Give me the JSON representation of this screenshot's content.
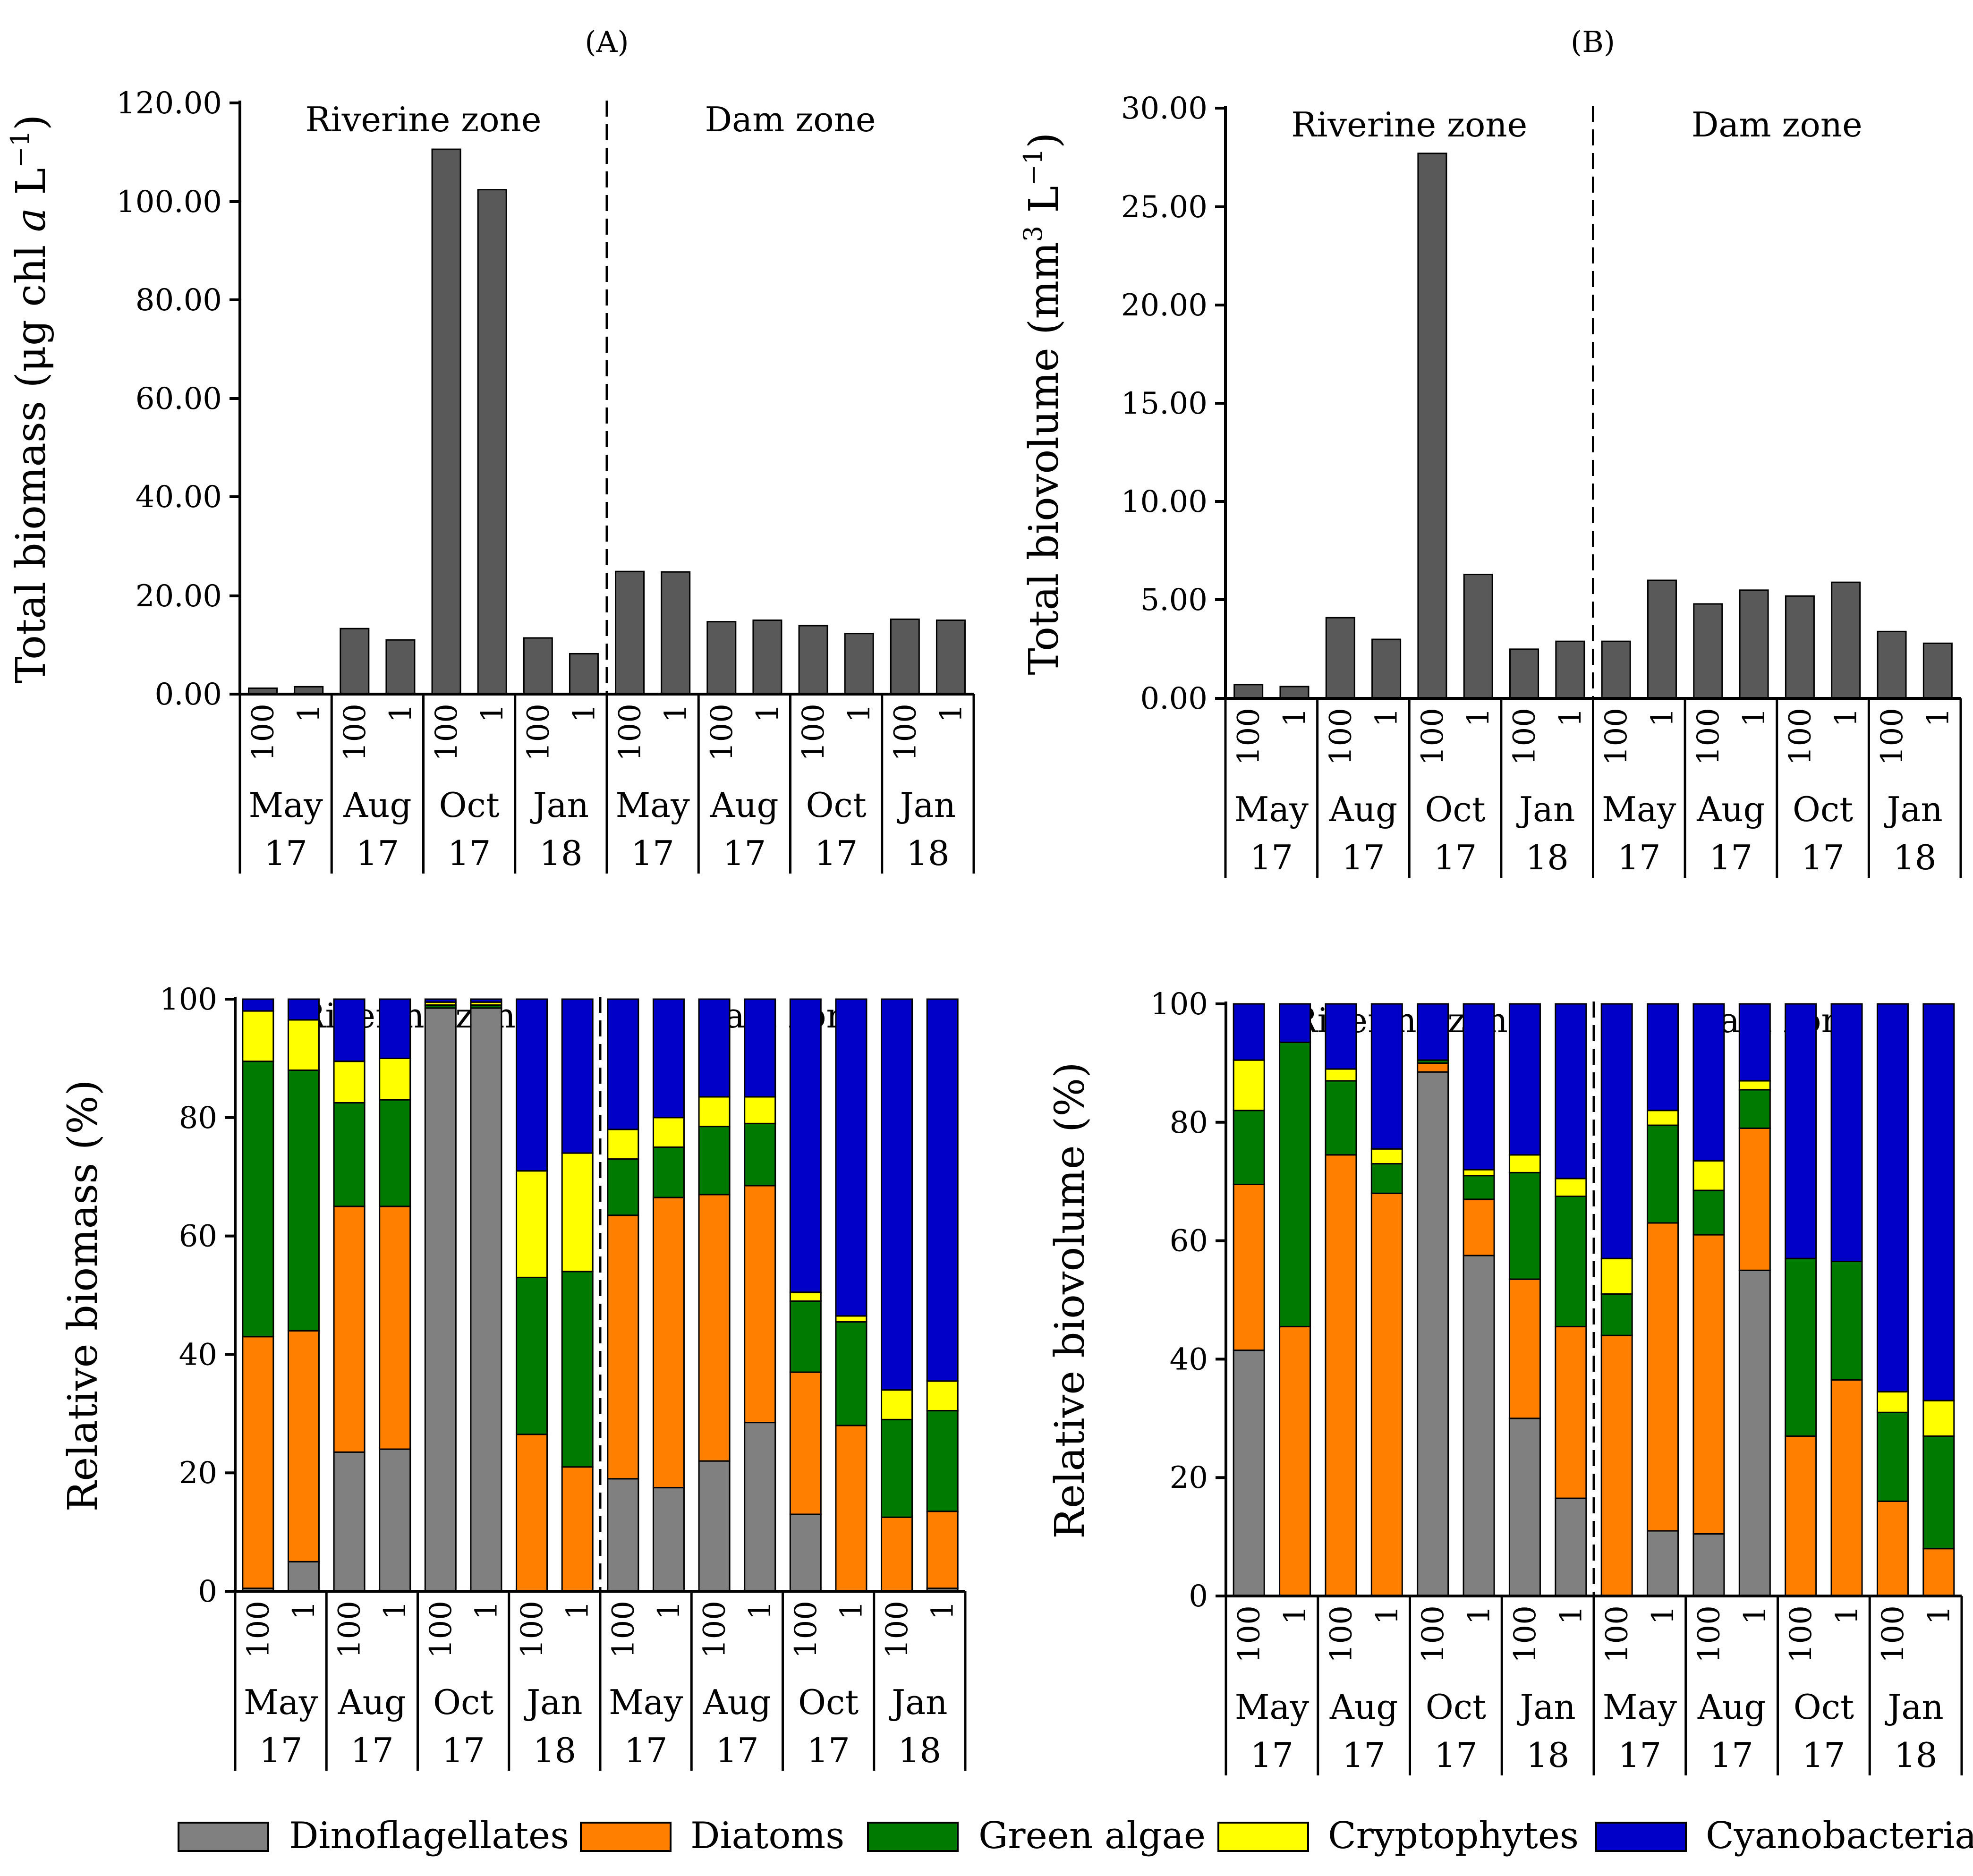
{
  "figure": {
    "panel_a_label": "(A)",
    "panel_b_label": "(B)",
    "zone_riverine": "Riverine zone",
    "zone_dam": "Dam zone",
    "legend": [
      {
        "name": "Dinoflagellates",
        "color": "#808080"
      },
      {
        "name": "Diatoms",
        "color": "#FF8000"
      },
      {
        "name": "Green algae",
        "color": "#007A00"
      },
      {
        "name": "Cryptophytes",
        "color": "#FFFF00"
      },
      {
        "name": "Cyanobacteria",
        "color": "#0000C8"
      }
    ],
    "bar_color": "#595959"
  },
  "chart_data": [
    {
      "id": "total-biomass",
      "type": "bar",
      "title": "(A)",
      "ylabel_main": "Total biomass (μg chl ",
      "ylabel_italic": "a",
      "ylabel_tail": " L",
      "ylabel_sup": "−1",
      "ylabel_close": ")",
      "ylim": [
        0,
        120
      ],
      "yticks": [
        "0.00",
        "20.00",
        "40.00",
        "60.00",
        "80.00",
        "100.00",
        "120.00"
      ],
      "depths": [
        "100",
        "1",
        "100",
        "1",
        "100",
        "1",
        "100",
        "1",
        "100",
        "1",
        "100",
        "1",
        "100",
        "1",
        "100",
        "1"
      ],
      "groups": [
        {
          "month": "May",
          "year": "17"
        },
        {
          "month": "Aug",
          "year": "17"
        },
        {
          "month": "Oct",
          "year": "17"
        },
        {
          "month": "Jan",
          "year": "18"
        },
        {
          "month": "May",
          "year": "17"
        },
        {
          "month": "Aug",
          "year": "17"
        },
        {
          "month": "Oct",
          "year": "17"
        },
        {
          "month": "Jan",
          "year": "18"
        }
      ],
      "values": [
        1.2,
        1.5,
        13.3,
        11.0,
        110.6,
        102.4,
        11.4,
        8.2,
        24.9,
        24.8,
        14.7,
        15.0,
        13.9,
        12.3,
        15.2,
        15.0
      ]
    },
    {
      "id": "total-biovolume",
      "type": "bar",
      "title": "(B)",
      "ylabel_main": "Total biovolume (mm",
      "ylabel_sup": "3",
      "ylabel_tail": " L",
      "ylabel_sup2": "−1",
      "ylabel_close": ")",
      "ylim": [
        0,
        30
      ],
      "yticks": [
        "0.00",
        "5.00",
        "10.00",
        "15.00",
        "20.00",
        "25.00",
        "30.00"
      ],
      "depths": [
        "100",
        "1",
        "100",
        "1",
        "100",
        "1",
        "100",
        "1",
        "100",
        "1",
        "100",
        "1",
        "100",
        "1",
        "100",
        "1"
      ],
      "groups": [
        {
          "month": "May",
          "year": "17"
        },
        {
          "month": "Aug",
          "year": "17"
        },
        {
          "month": "Oct",
          "year": "17"
        },
        {
          "month": "Jan",
          "year": "18"
        },
        {
          "month": "May",
          "year": "17"
        },
        {
          "month": "Aug",
          "year": "17"
        },
        {
          "month": "Oct",
          "year": "17"
        },
        {
          "month": "Jan",
          "year": "18"
        }
      ],
      "values": [
        0.7,
        0.6,
        4.1,
        3.0,
        27.7,
        6.3,
        2.5,
        2.9,
        2.9,
        6.0,
        4.8,
        5.5,
        5.2,
        5.9,
        3.4,
        2.8
      ]
    },
    {
      "id": "relative-biomass",
      "type": "bar",
      "stacked": true,
      "ylabel": "Relative biomass (%)",
      "ylim": [
        0,
        100
      ],
      "yticks": [
        "0",
        "20",
        "40",
        "60",
        "80",
        "100"
      ],
      "depths": [
        "100",
        "1",
        "100",
        "1",
        "100",
        "1",
        "100",
        "1",
        "100",
        "1",
        "100",
        "1",
        "100",
        "1",
        "100",
        "1"
      ],
      "groups": [
        {
          "month": "May",
          "year": "17"
        },
        {
          "month": "Aug",
          "year": "17"
        },
        {
          "month": "Oct",
          "year": "17"
        },
        {
          "month": "Jan",
          "year": "18"
        },
        {
          "month": "May",
          "year": "17"
        },
        {
          "month": "Aug",
          "year": "17"
        },
        {
          "month": "Oct",
          "year": "17"
        },
        {
          "month": "Jan",
          "year": "18"
        }
      ],
      "series": [
        {
          "name": "Dinoflagellates",
          "values": [
            0.5,
            5.0,
            23.5,
            24.0,
            98.5,
            98.5,
            0,
            0,
            19.0,
            17.5,
            22.0,
            28.5,
            13.0,
            0,
            0,
            0.5
          ]
        },
        {
          "name": "Diatoms",
          "values": [
            42.5,
            39.0,
            41.5,
            41.0,
            0,
            0,
            26.5,
            21.0,
            44.5,
            49.0,
            45.0,
            40.0,
            24.0,
            28.0,
            12.5,
            13.0
          ]
        },
        {
          "name": "Green algae",
          "values": [
            46.5,
            44.0,
            17.5,
            18.0,
            0.5,
            0.5,
            26.5,
            33.0,
            9.5,
            8.5,
            11.5,
            10.5,
            12.0,
            17.5,
            16.5,
            17.0
          ]
        },
        {
          "name": "Cryptophytes",
          "values": [
            8.5,
            8.5,
            7.0,
            7.0,
            0.5,
            0.5,
            18.0,
            20.0,
            5.0,
            5.0,
            5.0,
            4.5,
            1.5,
            1.0,
            5.0,
            5.0
          ]
        },
        {
          "name": "Cyanobacteria",
          "values": [
            2.0,
            3.5,
            10.5,
            10.0,
            0.5,
            0.5,
            29.0,
            26.0,
            22.0,
            20.0,
            16.5,
            16.5,
            49.5,
            53.5,
            66.0,
            64.5
          ]
        }
      ]
    },
    {
      "id": "relative-biovolume",
      "type": "bar",
      "stacked": true,
      "ylabel": "Relative biovolume (%)",
      "ylim": [
        0,
        100
      ],
      "yticks": [
        "0",
        "20",
        "40",
        "60",
        "80",
        "100"
      ],
      "depths": [
        "100",
        "1",
        "100",
        "1",
        "100",
        "1",
        "100",
        "1",
        "100",
        "1",
        "100",
        "1",
        "100",
        "1",
        "100",
        "1"
      ],
      "groups": [
        {
          "month": "May",
          "year": "17"
        },
        {
          "month": "Aug",
          "year": "17"
        },
        {
          "month": "Oct",
          "year": "17"
        },
        {
          "month": "Jan",
          "year": "18"
        },
        {
          "month": "May",
          "year": "17"
        },
        {
          "month": "Aug",
          "year": "17"
        },
        {
          "month": "Oct",
          "year": "17"
        },
        {
          "month": "Jan",
          "year": "18"
        }
      ],
      "series": [
        {
          "name": "Dinoflagellates",
          "values": [
            41.5,
            0,
            0,
            0,
            88.5,
            57.5,
            30.0,
            16.5,
            0,
            11.0,
            10.5,
            55.0,
            0,
            0,
            0,
            0
          ]
        },
        {
          "name": "Diatoms",
          "values": [
            28.0,
            45.5,
            74.5,
            68.0,
            1.5,
            9.5,
            23.5,
            29.0,
            44.0,
            52.0,
            50.5,
            24.0,
            27.0,
            36.5,
            16.0,
            8.0
          ]
        },
        {
          "name": "Green algae",
          "values": [
            12.5,
            48.0,
            12.5,
            5.0,
            0.5,
            4.0,
            18.0,
            22.0,
            7.0,
            16.5,
            7.5,
            6.5,
            30.0,
            20.0,
            15.0,
            19.0
          ]
        },
        {
          "name": "Cryptophytes",
          "values": [
            8.5,
            0,
            2.0,
            2.5,
            0,
            1.0,
            3.0,
            3.0,
            6.0,
            2.5,
            5.0,
            1.5,
            0,
            0,
            3.5,
            6.0
          ]
        },
        {
          "name": "Cyanobacteria",
          "values": [
            9.5,
            6.5,
            11.0,
            24.5,
            9.5,
            28.0,
            25.5,
            29.5,
            43.0,
            18.0,
            26.5,
            13.0,
            43.0,
            43.5,
            65.5,
            67.0
          ]
        }
      ]
    }
  ]
}
